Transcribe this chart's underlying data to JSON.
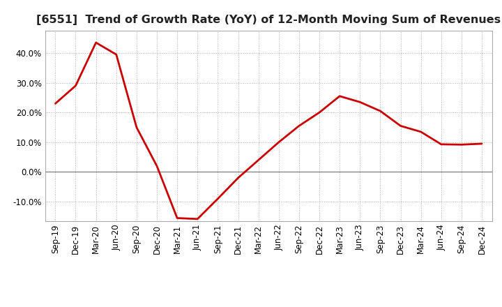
{
  "title": "[6551]  Trend of Growth Rate (YoY) of 12-Month Moving Sum of Revenues",
  "x_labels": [
    "Sep-19",
    "Dec-19",
    "Mar-20",
    "Jun-20",
    "Sep-20",
    "Dec-20",
    "Mar-21",
    "Jun-21",
    "Sep-21",
    "Dec-21",
    "Mar-22",
    "Jun-22",
    "Sep-22",
    "Dec-22",
    "Mar-23",
    "Jun-23",
    "Sep-23",
    "Dec-23",
    "Mar-24",
    "Jun-24",
    "Sep-24",
    "Dec-24"
  ],
  "y_values": [
    0.23,
    0.29,
    0.435,
    0.395,
    0.15,
    0.02,
    -0.155,
    -0.158,
    -0.09,
    -0.02,
    0.04,
    0.1,
    0.155,
    0.2,
    0.255,
    0.235,
    0.205,
    0.155,
    0.135,
    0.093,
    0.092,
    0.095
  ],
  "line_color": "#cc0000",
  "line_width": 2.0,
  "bg_color": "#ffffff",
  "plot_bg_color": "#ffffff",
  "grid_color": "#b0b0b0",
  "zero_line_color": "#888888",
  "ylim": [
    -0.165,
    0.475
  ],
  "yticks": [
    -0.1,
    0.0,
    0.1,
    0.2,
    0.3,
    0.4
  ],
  "title_fontsize": 11.5,
  "tick_fontsize": 8.5
}
